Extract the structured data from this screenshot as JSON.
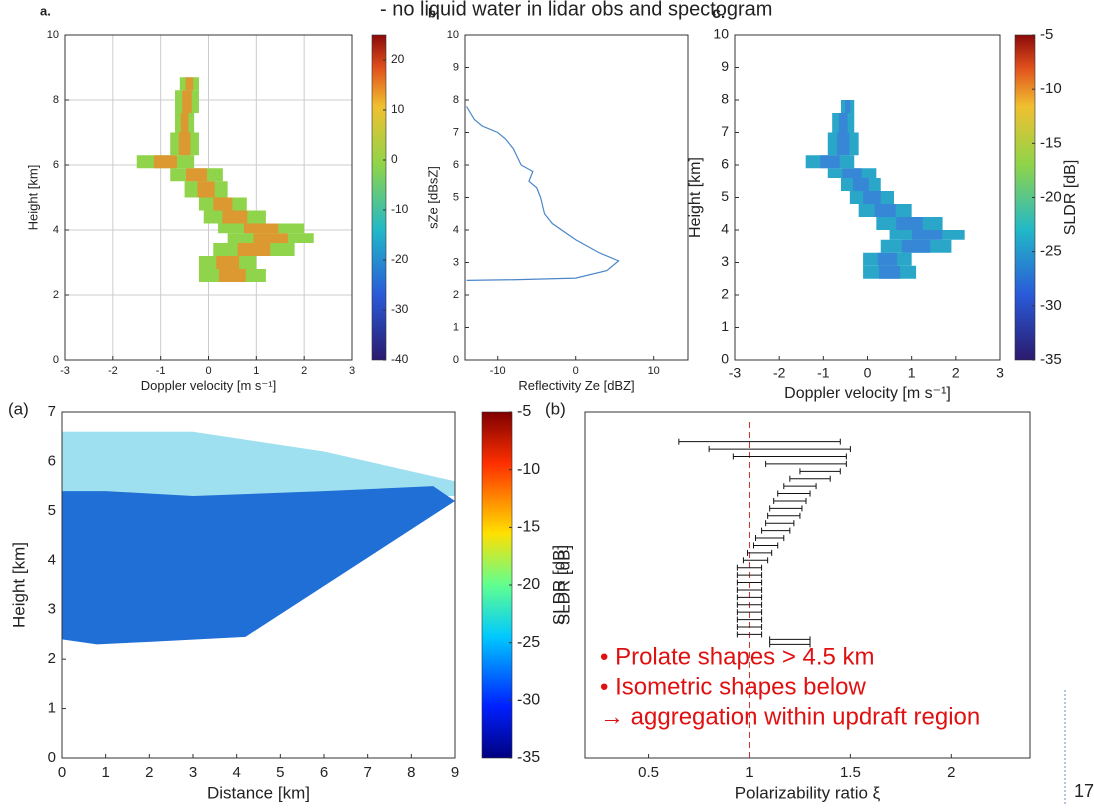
{
  "header": "- no liquid water in lidar obs and spectogram",
  "page_number": "17",
  "annotations": [
    "•  Prolate shapes > 4.5 km",
    "•  Isometric shapes below",
    "→ aggregation within updraft region"
  ],
  "chart_data": [
    {
      "type": "heatmap",
      "panel_label": "a.",
      "xlabel": "Doppler velocity [m s⁻¹]",
      "ylabel": "Height [km]",
      "xlim": [
        -3,
        3
      ],
      "xticks": [
        -3,
        -2,
        -1,
        0,
        1,
        2,
        3
      ],
      "ylim": [
        0,
        10
      ],
      "yticks": [
        0,
        2,
        4,
        6,
        8,
        10
      ],
      "grid": true,
      "color": "#8fd44a",
      "core_color": "#f08a2a",
      "profile": [
        [
          2.4,
          -0.2,
          1.2
        ],
        [
          2.8,
          -0.2,
          1.0
        ],
        [
          3.2,
          0.1,
          1.8
        ],
        [
          3.6,
          0.4,
          2.2
        ],
        [
          3.9,
          0.2,
          2.0
        ],
        [
          4.2,
          -0.1,
          1.2
        ],
        [
          4.6,
          -0.2,
          0.8
        ],
        [
          5.0,
          -0.5,
          0.4
        ],
        [
          5.5,
          -0.8,
          0.3
        ],
        [
          5.9,
          -1.5,
          -0.3
        ],
        [
          6.3,
          -0.8,
          -0.2
        ],
        [
          7.0,
          -0.7,
          -0.3
        ],
        [
          7.6,
          -0.7,
          -0.2
        ],
        [
          8.3,
          -0.6,
          -0.2
        ],
        [
          8.7,
          -0.1,
          0.4
        ]
      ],
      "colorbar": {
        "lim": [
          -40,
          25
        ],
        "ticks": [
          -40,
          -30,
          -20,
          -10,
          0,
          10,
          20
        ]
      }
    },
    {
      "type": "line",
      "panel_label": "b.",
      "xlabel": "Reflectivity Ze [dBZ]",
      "ylabel": "sZe [dBsZ]",
      "xlim": [
        -14.2,
        14.4
      ],
      "xticks": [
        -10,
        0,
        10
      ],
      "ylim": [
        0,
        10
      ],
      "yticks": [
        0,
        1,
        2,
        3,
        4,
        5,
        6,
        7,
        8,
        9,
        10
      ],
      "grid": false,
      "color": "#4a86c8",
      "x": [
        -14,
        -8,
        0,
        4,
        5.5,
        3,
        0,
        -3,
        -4,
        -4.5,
        -5,
        -6,
        -5.5,
        -7,
        -8,
        -9,
        -10,
        -12,
        -13,
        -14
      ],
      "values": [
        2.45,
        2.47,
        2.52,
        2.75,
        3.05,
        3.3,
        3.7,
        4.2,
        4.5,
        5.0,
        5.3,
        5.5,
        5.8,
        6.0,
        6.5,
        6.8,
        7.0,
        7.2,
        7.4,
        7.8
      ]
    },
    {
      "type": "heatmap",
      "panel_label": "c.",
      "xlabel": "Doppler velocity [m s⁻¹]",
      "ylabel": "Height [km]",
      "xlim": [
        -3,
        3
      ],
      "xticks": [
        -3,
        -2,
        -1,
        0,
        1,
        2,
        3
      ],
      "ylim": [
        0,
        10
      ],
      "yticks": [
        0,
        1,
        2,
        3,
        4,
        5,
        6,
        7,
        8,
        9,
        10
      ],
      "grid": false,
      "color": "#2aa7c8",
      "core_color": "#3a7fd8",
      "profile": [
        [
          2.5,
          -0.1,
          1.1
        ],
        [
          2.9,
          -0.1,
          1.0
        ],
        [
          3.3,
          0.3,
          1.9
        ],
        [
          3.7,
          0.5,
          2.2
        ],
        [
          4.0,
          0.2,
          1.7
        ],
        [
          4.4,
          -0.2,
          1.0
        ],
        [
          4.8,
          -0.4,
          0.6
        ],
        [
          5.2,
          -0.6,
          0.3
        ],
        [
          5.6,
          -0.9,
          0.2
        ],
        [
          5.9,
          -1.4,
          -0.3
        ],
        [
          6.3,
          -0.9,
          -0.2
        ],
        [
          7.0,
          -0.8,
          -0.3
        ],
        [
          7.6,
          -0.6,
          -0.3
        ],
        [
          8.0,
          -0.5,
          -0.3
        ]
      ],
      "colorbar": {
        "lim": [
          -35,
          -5
        ],
        "ticks": [
          -35,
          -30,
          -25,
          -20,
          -15,
          -10,
          -5
        ],
        "label": "SLDR [dB]"
      }
    },
    {
      "type": "region",
      "panel_label": "(a)",
      "xlabel": "Distance [km]",
      "ylabel": "Height [km]",
      "xlim": [
        0,
        9
      ],
      "xticks": [
        0,
        1,
        2,
        3,
        4,
        5,
        6,
        7,
        8,
        9
      ],
      "ylim": [
        0,
        7
      ],
      "yticks": [
        0,
        1,
        2,
        3,
        4,
        5,
        6,
        7
      ],
      "grid": false,
      "regions": [
        {
          "color": "#9ee0ef",
          "x": [
            0,
            9,
            9,
            6,
            3,
            1,
            0
          ],
          "y": [
            5.3,
            5.3,
            5.6,
            6.2,
            6.6,
            6.6,
            6.6
          ]
        },
        {
          "color": "#1f6fd6",
          "x": [
            0,
            0.8,
            2,
            4.2,
            9,
            8.5,
            6,
            3,
            1,
            0
          ],
          "y": [
            2.4,
            2.3,
            2.35,
            2.45,
            5.2,
            5.5,
            5.4,
            5.3,
            5.4,
            5.4
          ]
        }
      ],
      "colorbar": {
        "lim": [
          -35,
          -5
        ],
        "ticks": [
          -35,
          -30,
          -25,
          -20,
          -15,
          -10,
          -5
        ],
        "label": "SLDR [dB]"
      }
    },
    {
      "type": "errorbar",
      "panel_label": "(b)",
      "xlabel": "Polarizability ratio ξ",
      "ylabel": "SLDR [dB]",
      "xlim": [
        0.185,
        2.39
      ],
      "xticks": [
        0.5,
        1,
        1.5,
        2
      ],
      "ylim": [
        0,
        7
      ],
      "grid": false,
      "color": "#111",
      "reference_x": 1,
      "reference_color": "#d03030",
      "heights": [
        6.4,
        6.25,
        6.1,
        5.95,
        5.8,
        5.65,
        5.5,
        5.35,
        5.2,
        5.05,
        4.9,
        4.75,
        4.6,
        4.45,
        4.3,
        4.15,
        4.0,
        3.85,
        3.7,
        3.55,
        3.4,
        3.25,
        3.1,
        2.95,
        2.8,
        2.65,
        2.5,
        2.4,
        2.3
      ],
      "values": [
        1.05,
        1.15,
        1.2,
        1.28,
        1.35,
        1.3,
        1.25,
        1.22,
        1.2,
        1.18,
        1.17,
        1.15,
        1.13,
        1.1,
        1.08,
        1.05,
        1.03,
        1.0,
        1.0,
        1.0,
        1.0,
        1.0,
        1.0,
        1.0,
        1.0,
        1.0,
        1.0,
        1.2,
        1.2
      ],
      "errors": [
        0.4,
        0.35,
        0.28,
        0.2,
        0.1,
        0.1,
        0.08,
        0.08,
        0.08,
        0.08,
        0.08,
        0.07,
        0.07,
        0.07,
        0.06,
        0.06,
        0.06,
        0.06,
        0.06,
        0.06,
        0.06,
        0.06,
        0.06,
        0.06,
        0.06,
        0.06,
        0.06,
        0.1,
        0.1
      ]
    }
  ]
}
